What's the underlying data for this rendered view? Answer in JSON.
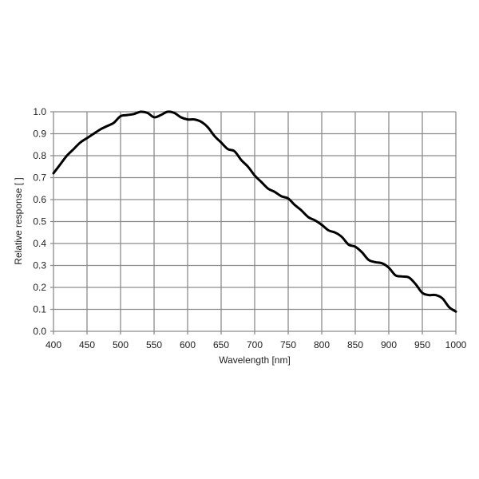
{
  "chart_data": {
    "type": "line",
    "title": "",
    "xlabel": "Wavelength [nm]",
    "ylabel": "Relative response [ ]",
    "xlim": [
      400,
      1000
    ],
    "ylim": [
      0.0,
      1.0
    ],
    "grid": true,
    "legend": null,
    "x_ticks": [
      "400",
      "450",
      "500",
      "550",
      "600",
      "650",
      "700",
      "750",
      "800",
      "850",
      "900",
      "950",
      "1000"
    ],
    "y_ticks": [
      "0.0",
      "0.1",
      "0.2",
      "0.3",
      "0.4",
      "0.5",
      "0.6",
      "0.7",
      "0.8",
      "0.9",
      "1.0"
    ],
    "series": [
      {
        "name": "Relative response",
        "color": "#000000",
        "x": [
          400,
          410,
          420,
          430,
          440,
          450,
          460,
          470,
          480,
          490,
          500,
          510,
          520,
          530,
          540,
          550,
          560,
          570,
          580,
          590,
          600,
          610,
          620,
          630,
          640,
          650,
          660,
          670,
          680,
          690,
          700,
          710,
          720,
          730,
          740,
          750,
          760,
          770,
          780,
          790,
          800,
          810,
          820,
          830,
          840,
          850,
          860,
          870,
          880,
          890,
          900,
          910,
          920,
          930,
          940,
          950,
          960,
          970,
          980,
          990,
          1000
        ],
        "values": [
          0.72,
          0.76,
          0.8,
          0.83,
          0.86,
          0.88,
          0.9,
          0.92,
          0.935,
          0.95,
          0.98,
          0.985,
          0.99,
          1.0,
          0.995,
          0.975,
          0.985,
          1.0,
          0.995,
          0.975,
          0.965,
          0.965,
          0.955,
          0.93,
          0.89,
          0.86,
          0.83,
          0.82,
          0.78,
          0.75,
          0.71,
          0.68,
          0.65,
          0.635,
          0.615,
          0.605,
          0.575,
          0.55,
          0.52,
          0.505,
          0.485,
          0.46,
          0.45,
          0.43,
          0.395,
          0.385,
          0.36,
          0.325,
          0.315,
          0.31,
          0.29,
          0.255,
          0.25,
          0.245,
          0.215,
          0.175,
          0.165,
          0.165,
          0.15,
          0.11,
          0.09
        ]
      }
    ]
  },
  "labels": {
    "xlabel": "Wavelength [nm]",
    "ylabel": "Relative response [ ]"
  },
  "colors": {
    "grid": "#8c8c8c",
    "curve": "#000000",
    "background": "#ffffff"
  }
}
